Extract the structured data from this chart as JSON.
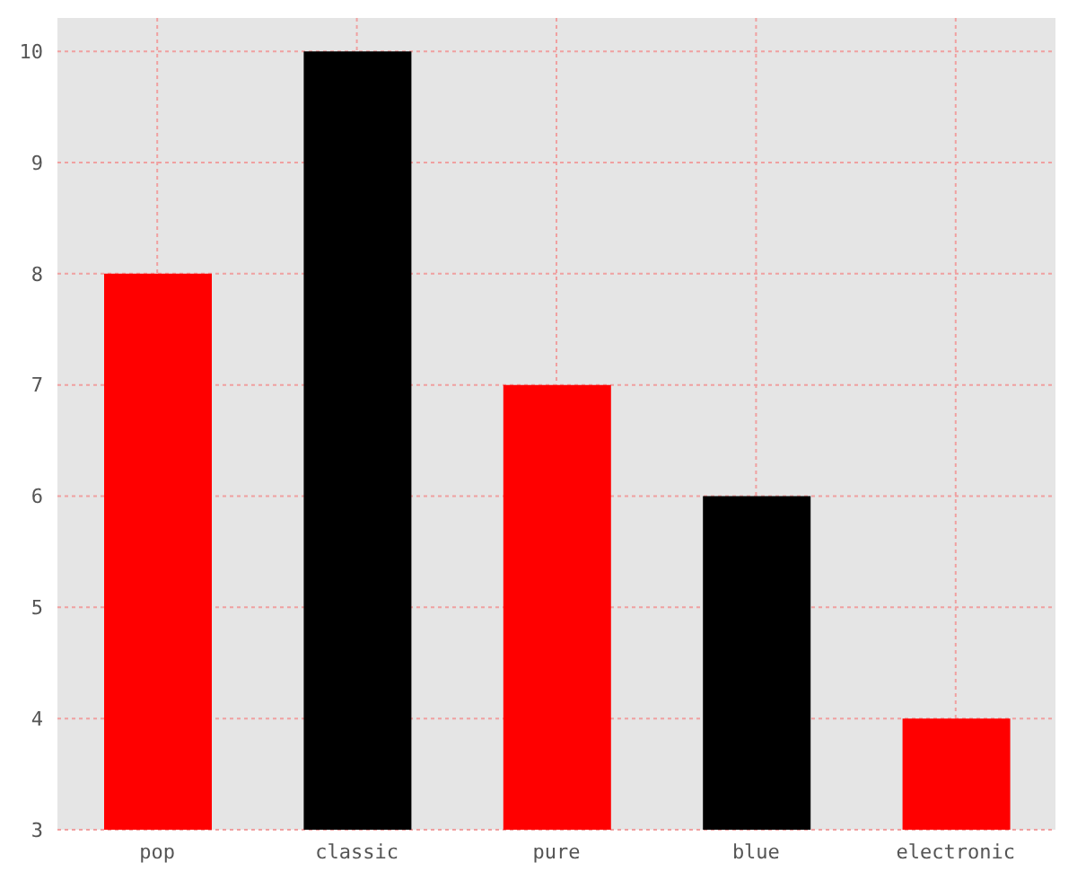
{
  "chart_data": {
    "type": "bar",
    "categories": [
      "pop",
      "classic",
      "pure",
      "blue",
      "electronic"
    ],
    "values": [
      8,
      10,
      7,
      6,
      4
    ],
    "colors": [
      "#ff0000",
      "#000000",
      "#ff0000",
      "#000000",
      "#ff0000"
    ],
    "ylim": [
      3,
      10.3
    ],
    "yticks": [
      3,
      4,
      5,
      6,
      7,
      8,
      9,
      10
    ],
    "grid": true
  }
}
